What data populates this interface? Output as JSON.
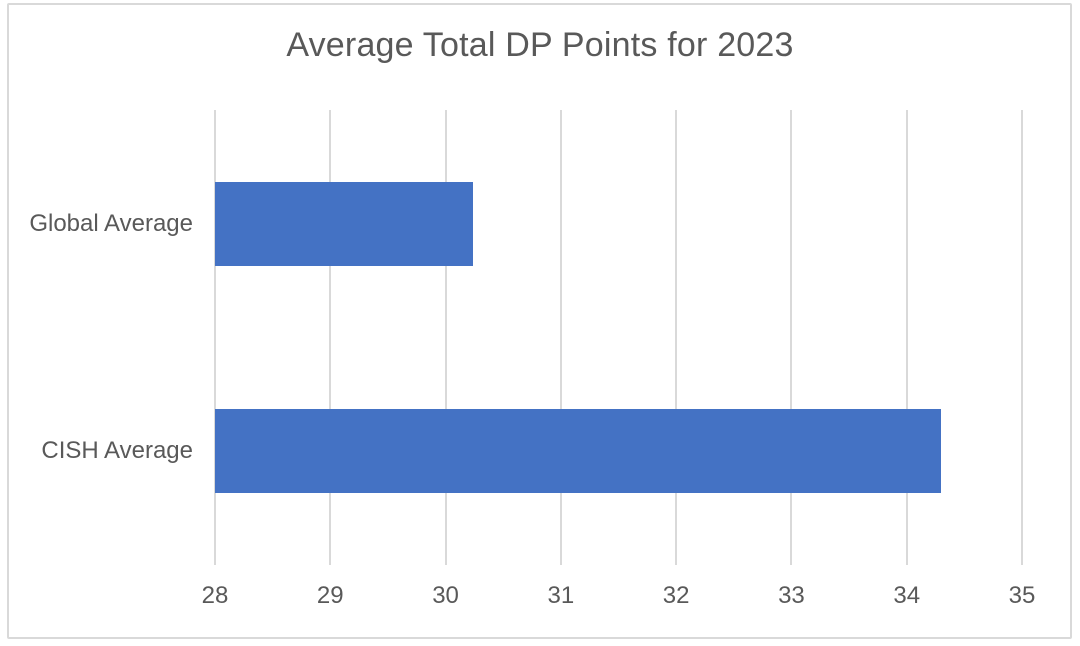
{
  "chart_data": {
    "type": "bar",
    "orientation": "horizontal",
    "title": "Average Total DP Points for 2023",
    "categories": [
      "Global Average",
      "CISH Average"
    ],
    "values": [
      30.24,
      34.3
    ],
    "xlabel": "",
    "ylabel": "",
    "xlim": [
      28,
      35
    ],
    "x_ticks": [
      28,
      29,
      30,
      31,
      32,
      33,
      34,
      35
    ],
    "grid": true,
    "legend": false
  },
  "colors": {
    "bar": "#4472C4",
    "gridline": "#D9D9D9",
    "frame_border": "#D9D9D9",
    "text": "#595959"
  }
}
